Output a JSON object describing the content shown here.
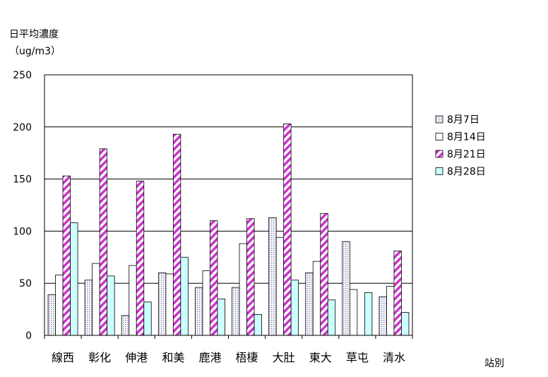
{
  "chart_data": {
    "type": "bar",
    "ylabel_line1": "日平均濃度",
    "ylabel_line2": "（ug/m3）",
    "xlabel": "站別",
    "ylim": [
      0,
      250
    ],
    "yticks": [
      0,
      50,
      100,
      150,
      200,
      250
    ],
    "grid": true,
    "legend_position": "right",
    "categories": [
      "線西",
      "彰化",
      "伸港",
      "和美",
      "鹿港",
      "梧棲",
      "大肚",
      "東大",
      "草屯",
      "清水"
    ],
    "series": [
      {
        "name": "8月7日",
        "pattern": "dots",
        "color": "#c8c8e6",
        "values": [
          39,
          53,
          19,
          60,
          46,
          46,
          113,
          60,
          90,
          37
        ]
      },
      {
        "name": "8月14日",
        "pattern": "white",
        "color": "#ffffff",
        "values": [
          58,
          69,
          67,
          59,
          62,
          88,
          94,
          71,
          44,
          47
        ]
      },
      {
        "name": "8月21日",
        "pattern": "stripe",
        "color": "#cc33cc",
        "values": [
          153,
          179,
          148,
          193,
          110,
          112,
          203,
          117,
          null,
          81
        ]
      },
      {
        "name": "8月28日",
        "pattern": "solid",
        "color": "#ccffff",
        "values": [
          108,
          57,
          32,
          75,
          35,
          20,
          53,
          34,
          41,
          22
        ]
      }
    ]
  }
}
